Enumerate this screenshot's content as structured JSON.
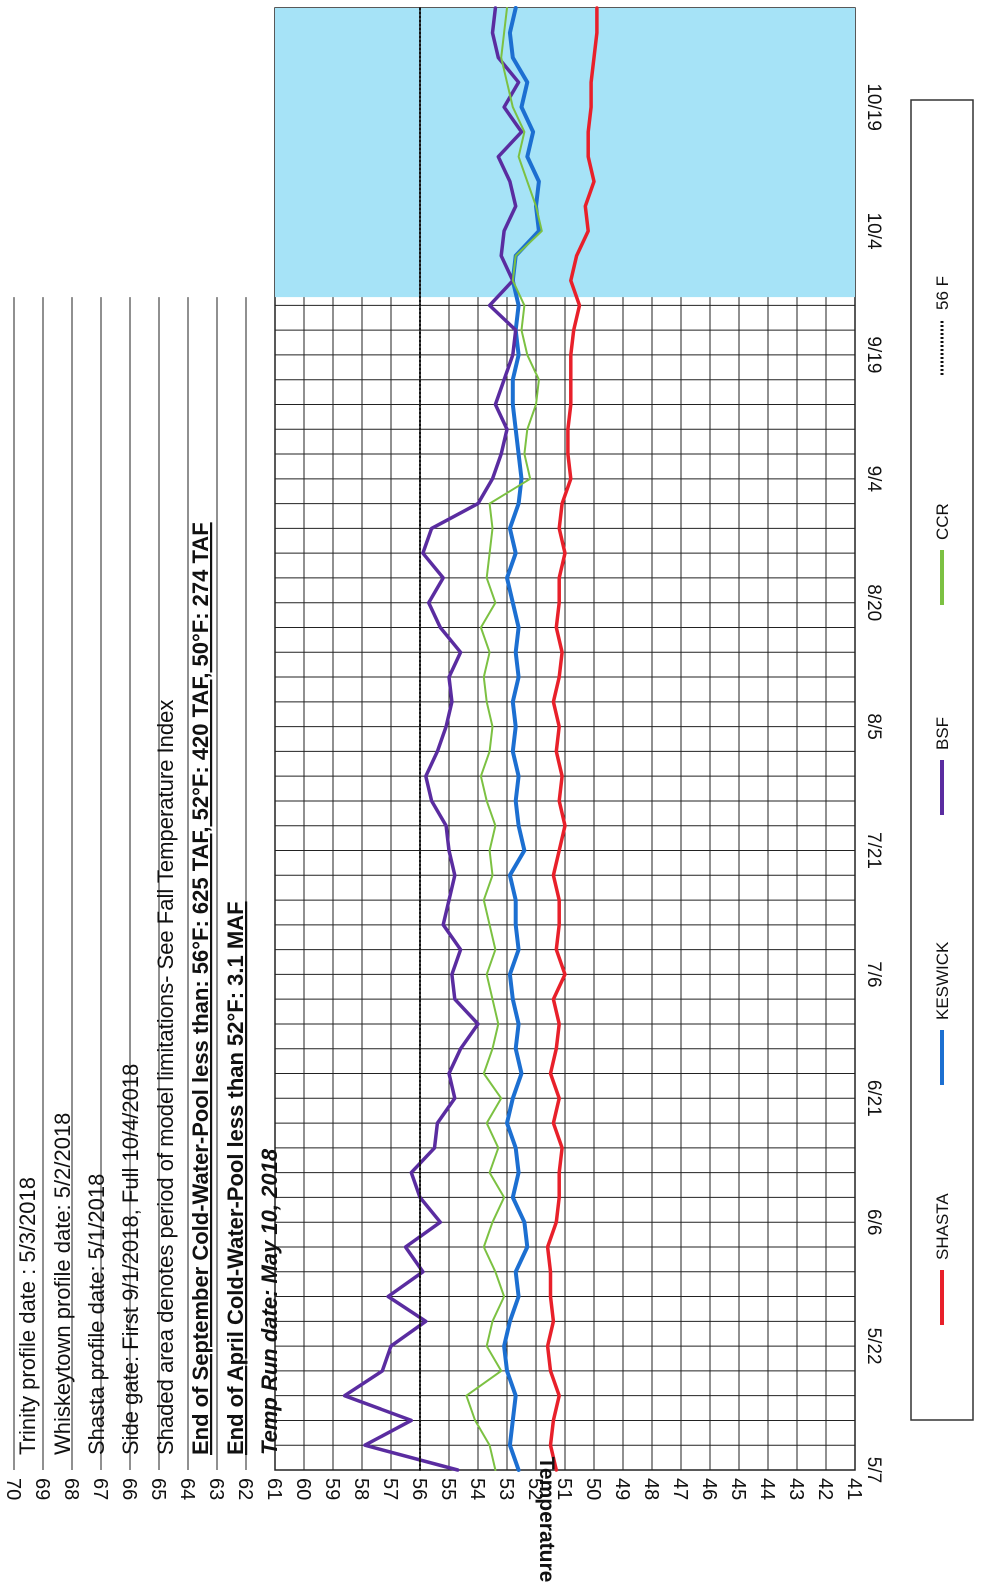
{
  "chart_data": {
    "type": "line",
    "ylabel": "Temperature (°F)",
    "xlabel": "",
    "ylim": [
      41,
      70
    ],
    "y_ticks": [
      "70",
      "69",
      "68",
      "67",
      "66",
      "65",
      "64",
      "63",
      "62",
      "61",
      "60",
      "59",
      "58",
      "57",
      "56",
      "55",
      "54",
      "53",
      "52",
      "51",
      "50",
      "49",
      "48",
      "47",
      "46",
      "45",
      "44",
      "43",
      "42",
      "41"
    ],
    "x_ticks": [
      "5/7",
      "5/22",
      "6/6",
      "6/21",
      "7/6",
      "7/21",
      "8/5",
      "8/20",
      "9/4",
      "9/19",
      "10/4",
      "10/19"
    ],
    "x_range": [
      "5/7",
      "10/31"
    ],
    "grid": true,
    "shaded_region": {
      "from": "9/26",
      "to": "10/31",
      "color": "#a6e3f7"
    },
    "annotations": [
      "Trinity profile date : 5/3/2018",
      "Whiskeytown profile date: 5/2/2018",
      "Shasta profile date: 5/1/2018",
      "Side gate: First 9/1/2018, Full 10/4/2018",
      "Shaded area denotes period of model limitations- See Fall Temperature Index",
      "End of September Cold-Water-Pool less than: 56°F: 625 TAF, 52°F: 420 TAF, 50°F: 274 TAF",
      "End of April Cold-Water-Pool less than 52°F: 3.1 MAF",
      "Temp Run date: May 10, 2018"
    ],
    "series": [
      {
        "name": "SHASTA",
        "color": "#e8202a",
        "width": 3.5,
        "x": [
          0,
          3,
          6,
          9,
          12,
          15,
          18,
          21,
          24,
          27,
          30,
          33,
          36,
          39,
          42,
          45,
          48,
          51,
          54,
          57,
          60,
          63,
          66,
          69,
          72,
          75,
          78,
          81,
          84,
          87,
          90,
          93,
          96,
          99,
          102,
          105,
          108,
          111,
          114,
          117,
          120,
          123,
          126,
          129,
          132,
          135,
          138,
          141,
          144,
          147,
          150,
          153,
          156,
          159,
          162,
          165,
          168,
          171,
          174,
          177
        ],
        "y": [
          51.3,
          51.5,
          51.4,
          51.2,
          51.5,
          51.6,
          51.4,
          51.5,
          51.5,
          51.6,
          51.3,
          51.2,
          51.2,
          51.1,
          51.4,
          51.2,
          51.5,
          51.3,
          51.2,
          51.4,
          51.0,
          51.3,
          51.2,
          51.2,
          51.4,
          51.2,
          51.0,
          51.2,
          51.1,
          51.3,
          51.2,
          51.4,
          51.2,
          51.1,
          51.3,
          51.2,
          51.2,
          51.0,
          51.2,
          51.1,
          50.8,
          50.9,
          50.9,
          50.8,
          50.8,
          50.8,
          50.7,
          50.5,
          50.8,
          50.6,
          50.2,
          50.3,
          50.0,
          50.2,
          50.2,
          50.1,
          50.1,
          50.0,
          49.9,
          49.9
        ]
      },
      {
        "name": "KESWICK",
        "color": "#1c6fd1",
        "width": 4,
        "x": [
          0,
          3,
          6,
          9,
          12,
          15,
          18,
          21,
          24,
          27,
          30,
          33,
          36,
          39,
          42,
          45,
          48,
          51,
          54,
          57,
          60,
          63,
          66,
          69,
          72,
          75,
          78,
          81,
          84,
          87,
          90,
          93,
          96,
          99,
          102,
          105,
          108,
          111,
          114,
          117,
          120,
          123,
          126,
          129,
          132,
          135,
          138,
          141,
          144,
          147,
          150,
          153,
          156,
          159,
          162,
          165,
          168,
          171,
          174,
          177
        ],
        "y": [
          52.6,
          52.9,
          52.8,
          52.7,
          53.0,
          53.1,
          52.9,
          52.6,
          52.7,
          52.3,
          52.4,
          52.8,
          52.6,
          52.7,
          53.0,
          52.8,
          52.5,
          52.7,
          52.6,
          52.8,
          52.9,
          52.6,
          52.7,
          52.7,
          52.9,
          52.4,
          52.6,
          52.7,
          52.6,
          52.8,
          52.7,
          52.8,
          52.6,
          52.7,
          52.6,
          52.8,
          53.0,
          52.7,
          52.9,
          52.6,
          52.5,
          52.6,
          52.7,
          52.8,
          52.8,
          52.6,
          52.7,
          52.6,
          52.8,
          52.7,
          51.9,
          52.0,
          51.9,
          52.3,
          52.1,
          52.5,
          52.3,
          52.8,
          52.9,
          52.7
        ]
      },
      {
        "name": "BSF",
        "color": "#5a2ca0",
        "width": 3.5,
        "x": [
          0,
          3,
          6,
          9,
          12,
          15,
          18,
          21,
          24,
          27,
          30,
          33,
          36,
          39,
          42,
          45,
          48,
          51,
          54,
          57,
          60,
          63,
          66,
          69,
          72,
          75,
          78,
          81,
          84,
          87,
          90,
          93,
          96,
          99,
          102,
          105,
          108,
          111,
          114,
          117,
          120,
          123,
          126,
          129,
          132,
          135,
          138,
          141,
          144,
          147,
          150,
          153,
          156,
          159,
          162,
          165,
          168,
          171,
          174,
          177
        ],
        "y": [
          54.7,
          57.9,
          56.3,
          58.6,
          57.3,
          57.0,
          55.8,
          57.1,
          55.9,
          56.5,
          55.3,
          56.0,
          56.3,
          55.5,
          55.4,
          54.8,
          55.0,
          54.6,
          54.0,
          54.8,
          54.9,
          54.6,
          55.2,
          55.0,
          54.8,
          55.0,
          55.1,
          55.6,
          55.8,
          55.4,
          55.1,
          54.9,
          55.0,
          54.6,
          55.3,
          55.7,
          55.2,
          55.9,
          55.6,
          54.0,
          53.5,
          53.2,
          53.0,
          53.4,
          53.1,
          52.8,
          52.7,
          53.6,
          52.8,
          53.2,
          53.1,
          52.7,
          52.9,
          53.3,
          52.5,
          53.1,
          52.6,
          53.3,
          53.5,
          53.4
        ]
      },
      {
        "name": "CCR",
        "color": "#7cc142",
        "width": 2,
        "x": [
          0,
          3,
          6,
          9,
          12,
          15,
          18,
          21,
          24,
          27,
          30,
          33,
          36,
          39,
          42,
          45,
          48,
          51,
          54,
          57,
          60,
          63,
          66,
          69,
          72,
          75,
          78,
          81,
          84,
          87,
          90,
          93,
          96,
          99,
          102,
          105,
          108,
          111,
          114,
          117,
          120,
          123,
          126,
          129,
          132,
          135,
          138,
          141,
          144,
          147,
          150,
          153,
          156,
          159,
          162,
          165,
          168,
          171,
          174,
          177
        ],
        "y": [
          53.4,
          53.6,
          54.1,
          54.4,
          53.2,
          53.7,
          53.5,
          53.1,
          53.4,
          53.8,
          53.5,
          53.1,
          53.6,
          53.3,
          53.7,
          53.2,
          53.8,
          53.5,
          53.3,
          53.5,
          53.7,
          53.4,
          53.6,
          53.8,
          53.5,
          53.6,
          53.4,
          53.7,
          53.9,
          53.6,
          53.5,
          53.7,
          53.8,
          53.6,
          53.9,
          53.4,
          53.7,
          53.6,
          53.5,
          53.6,
          52.2,
          52.4,
          52.3,
          52.0,
          51.9,
          52.3,
          52.5,
          52.4,
          52.8,
          52.7,
          51.8,
          52.0,
          52.3,
          52.6,
          52.4,
          52.8,
          53.0,
          53.2,
          53.1,
          53.0
        ]
      },
      {
        "name": "56 F",
        "color": "#111111",
        "width": 2,
        "dashed": true,
        "x": [
          0,
          177
        ],
        "y": [
          56,
          56
        ]
      }
    ]
  }
}
